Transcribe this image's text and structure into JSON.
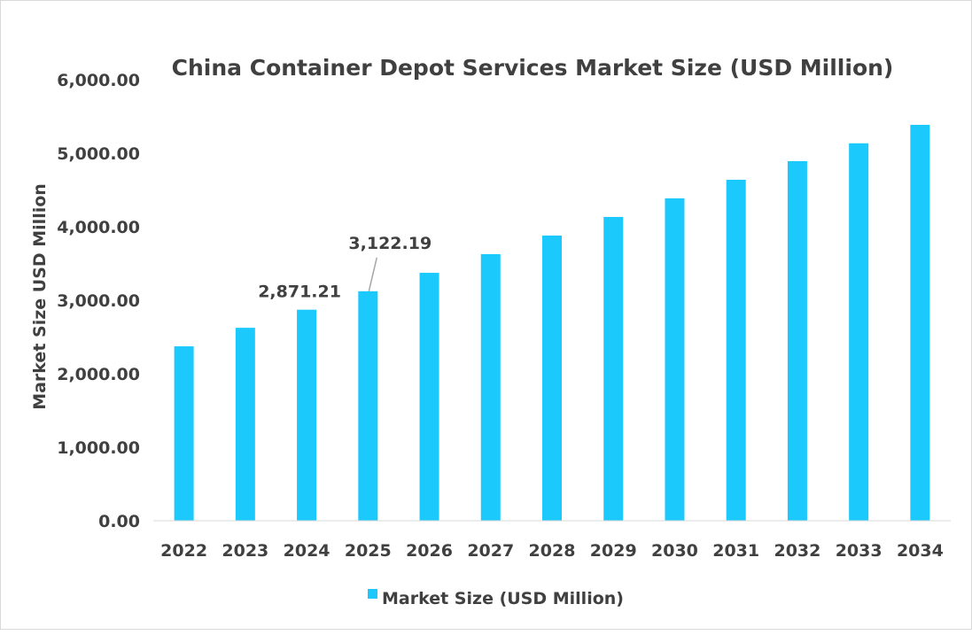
{
  "chart_data": {
    "type": "bar",
    "title": "China Container Depot Services Market Size (USD Million)",
    "xlabel": "",
    "ylabel": "Market Size USD Million",
    "ylim": [
      0,
      6000
    ],
    "yticks": [
      "0.00",
      "1,000.00",
      "2,000.00",
      "3,000.00",
      "4,000.00",
      "5,000.00",
      "6,000.00"
    ],
    "categories": [
      "2022",
      "2023",
      "2024",
      "2025",
      "2026",
      "2027",
      "2028",
      "2029",
      "2030",
      "2031",
      "2032",
      "2033",
      "2034"
    ],
    "series": [
      {
        "name": "Market Size (USD Million)",
        "color": "#1BC9FC",
        "values": [
          2373,
          2625,
          2871.21,
          3122.19,
          3373,
          3627,
          3880,
          4133,
          4386,
          4639,
          4892,
          5135,
          5386
        ]
      }
    ],
    "data_labels": [
      {
        "category": "2024",
        "text": "2,871.21"
      },
      {
        "category": "2025",
        "text": "3,122.19"
      }
    ],
    "grid": false,
    "legend": "bottom"
  }
}
